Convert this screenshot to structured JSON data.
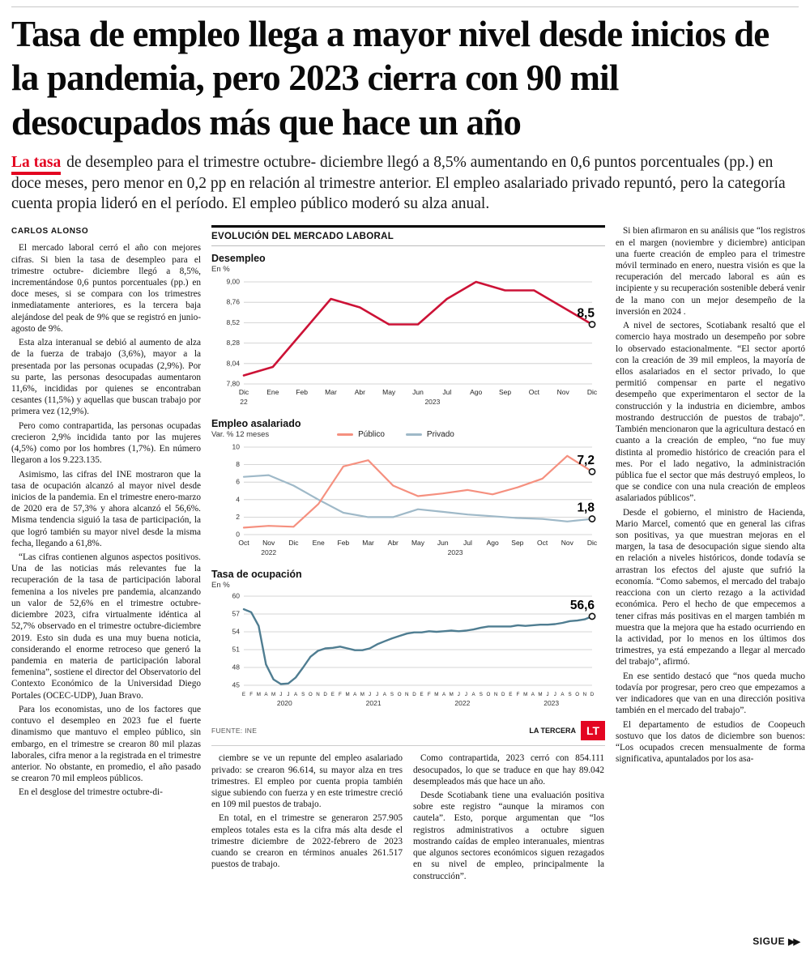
{
  "header": {
    "headline": "Tasa de empleo llega a mayor nivel desde inicios de la pandemia, pero 2023 cierra con 90 mil desocupados más que hace un año"
  },
  "lede": {
    "highlight": "La tasa",
    "text": "de desempleo para el trimestre octubre- diciembre llegó a 8,5% aumentando en 0,6 puntos porcentuales (pp.) en doce meses, pero menor en 0,2 pp en relación al trimestre anterior. El empleo asalariado privado repuntó, pero la categoría cuenta propia lideró en el período. El empleo público moderó su alza anual."
  },
  "article": {
    "byline": "CARLOS ALONSO",
    "columns": {
      "left": [
        "El mercado laboral cerró el año con mejores cifras. Si bien la tasa de desempleo para el trimestre octubre- diciembre llegó a 8,5%, incrementándose 0,6 puntos porcentuales (pp.) en doce meses, si se compara con los trimestres inmediatamente anteriores, es la tercera baja alejándose del peak de 9% que se registró en junio-agosto de 9%.",
        "Esta alza interanual se debió al aumento de alza de la fuerza de trabajo (3,6%), mayor a la presentada por las personas ocupadas (2,9%). Por su parte, las personas desocupadas aumentaron 11,6%, incididas por quienes se encontraban cesantes (11,5%) y aquellas que buscan trabajo por primera vez (12,9%).",
        "Pero como contrapartida, las personas ocupadas crecieron 2,9% incidida tanto por las mujeres (4,5%) como por los hombres (1,7%). En número llegaron a los 9.223.135.",
        "Asimismo, las cifras del INE mostraron que la tasa de ocupación alcanzó al mayor nivel desde inicios de la pandemia. En el trimestre enero-marzo de 2020 era de 57,3% y ahora alcanzó el 56,6%. Misma tendencia siguió la tasa de participación, la que logró también su mayor nivel desde la misma fecha, llegando a 61,8%.",
        "“Las cifras contienen algunos aspectos positivos. Una de las noticias más relevantes fue la recuperación de la tasa de participación laboral femenina a los niveles pre pandemia, alcanzando un valor de 52,6% en el trimestre octubre-diciembre 2023, cifra virtualmente idéntica al 52,7% observado en el trimestre octubre-diciembre 2019. Esto sin duda es una muy buena noticia, considerando el enorme retroceso que generó la pandemia en materia de participación laboral femenina”, sostiene el director del Observatorio del Contexto Económico de la Universidad Diego Portales (OCEC-UDP), Juan Bravo.",
        "Para los economistas, uno de los factores que contuvo el desempleo en 2023 fue el fuerte dinamismo que mantuvo el empleo público, sin embargo, en el trimestre se crearon 80 mil plazas laborales, cifra menor a la registrada en el trimestre anterior. No obstante, en promedio, el año pasado se crearon 70 mil empleos públicos.",
        "En el desglose del trimestre octubre-di-"
      ],
      "mid_left": [
        "ciembre se ve un repunte del empleo asalariado privado: se crearon 96.614, su mayor alza en tres trimestres. El empleo por cuenta propia también sigue subiendo con fuerza y en este trimestre creció en 109 mil puestos de trabajo.",
        "En total, en el trimestre se generaron 257.905 empleos totales esta es la cifra más alta desde el trimestre diciembre de 2022-febrero de 2023 cuando se crearon en términos anuales 261.517 puestos de trabajo."
      ],
      "mid_right": [
        "Como contrapartida, 2023 cerró con 854.111 desocupados, lo que se traduce en que hay 89.042 desempleados más que hace un año.",
        "Desde Scotiabank tiene una evaluación positiva sobre este registro “aunque la miramos con cautela”. Esto, porque argumentan que “los registros administrativos a octubre siguen mostrando caídas de empleo interanuales, mientras que algunos sectores económicos siguen rezagados en su nivel de empleo, principalmente la construcción”."
      ],
      "right": [
        "Si bien afirmaron en su análisis que “los registros en el margen (noviembre y diciembre) anticipan una fuerte creación de empleo para el trimestre móvil terminado en enero, nuestra visión es que la recuperación del mercado laboral es aún es incipiente y su recuperación sostenible deberá venir de la mano con un mejor desempeño de la inversión en 2024 .",
        "A nivel de sectores, Scotiabank resaltó que el comercio haya mostrado un desempeño por sobre lo observado estacionalmente. “El sector aportó con la creación de 39 mil empleos, la mayoría de ellos asalariados en el sector privado, lo que permitió compensar en parte el negativo desempeño que experimentaron el sector de la construcción y la industria en diciembre, ambos mostrando destrucción de puestos de trabajo”. También mencionaron que la agricultura destacó en cuanto a la creación de empleo, “no fue muy distinta al promedio histórico de creación para el mes. Por el lado negativo, la administración pública fue el sector que más destruyó empleos, lo que se condice con una nula creación de empleos asalariados públicos”.",
        "Desde el gobierno, el ministro de Hacienda, Mario Marcel, comentó que en general las cifras son positivas, ya que muestran mejoras en el margen, la tasa de desocupación sigue siendo alta en relación a niveles históricos, donde todavía se arrastran los efectos del ajuste que sufrió la economía. “Como sabemos, el mercado del trabajo reacciona con un cierto rezago a la actividad económica. Pero el hecho de que empecemos a tener cifras más positivas en el margen también m muestra que la mejora que ha estado ocurriendo en la actividad, por lo menos en los últimos dos trimestres, ya está empezando a llegar al mercado del trabajo”, afirmó.",
        "En ese sentido destacó que “nos queda mucho todavía por progresar, pero creo que empezamos a ver indicadores que van en una dirección positiva también en el mercado del trabajo”.",
        "El departamento de estudios de Coopeuch sostuvo que los datos de diciembre son buenos: “Los ocupados crecen mensualmente de forma significativa, apuntalados por los asa-"
      ]
    }
  },
  "charts_panel": {
    "section_title": "EVOLUCIÓN DEL MERCADO LABORAL",
    "source": "FUENTE: INE",
    "credit": "LA TERCERA",
    "logo_text": "LT"
  },
  "footer_continue": {
    "label": "SIGUE",
    "arrows": "▶▶"
  },
  "colors": {
    "accent_red": "#e30521",
    "desempleo_line": "#cc1236",
    "publico_line": "#f5907f",
    "privado_line": "#9fb9c8",
    "ocupacion_line": "#4f7d91"
  },
  "chart_data": [
    {
      "type": "line",
      "title": "Desempleo",
      "unit": "En %",
      "x": [
        "Dic",
        "Ene",
        "Feb",
        "Mar",
        "Abr",
        "May",
        "Jun",
        "Jul",
        "Ago",
        "Sep",
        "Oct",
        "Nov",
        "Dic"
      ],
      "x_years": [
        {
          "label": "22",
          "at": 0
        },
        {
          "label": "2023",
          "at": 6.5
        }
      ],
      "ylim": [
        7.8,
        9.0
      ],
      "yticks": [
        7.8,
        8.04,
        8.28,
        8.52,
        8.76,
        9.0
      ],
      "ytick_labels": [
        "7,80",
        "8,04",
        "8,28",
        "8,52",
        "8,76",
        "9,00"
      ],
      "series": [
        {
          "name": "Desempleo",
          "color": "#cc1236",
          "width": 2.6,
          "end_label": "8,5",
          "values": [
            7.9,
            8.0,
            8.4,
            8.8,
            8.7,
            8.5,
            8.5,
            8.8,
            9.0,
            8.9,
            8.9,
            8.7,
            8.5
          ]
        }
      ]
    },
    {
      "type": "line",
      "title": "Empleo asalariado",
      "unit": "Var. % 12 meses",
      "legend": [
        "Público",
        "Privado"
      ],
      "x": [
        "Oct",
        "Nov",
        "Dic",
        "Ene",
        "Feb",
        "Mar",
        "Abr",
        "May",
        "Jun",
        "Jul",
        "Ago",
        "Sep",
        "Oct",
        "Nov",
        "Dic"
      ],
      "x_years": [
        {
          "label": "2022",
          "at": 1
        },
        {
          "label": "2023",
          "at": 8.5
        }
      ],
      "ylim": [
        0,
        10
      ],
      "yticks": [
        0,
        2,
        4,
        6,
        8,
        10
      ],
      "ytick_labels": [
        "0",
        "2",
        "4",
        "6",
        "8",
        "10"
      ],
      "series": [
        {
          "name": "Privado",
          "color": "#9fb9c8",
          "width": 2.2,
          "end_label": "1,8",
          "values": [
            6.6,
            6.8,
            5.6,
            4.0,
            2.5,
            2.0,
            2.0,
            2.9,
            2.6,
            2.3,
            2.1,
            1.9,
            1.8,
            1.5,
            1.8
          ]
        },
        {
          "name": "Público",
          "color": "#f5907f",
          "width": 2.2,
          "end_label": "7,2",
          "values": [
            0.8,
            1.0,
            0.9,
            3.5,
            7.8,
            8.5,
            5.6,
            4.4,
            4.7,
            5.1,
            4.6,
            5.4,
            6.4,
            9.0,
            7.2
          ]
        }
      ]
    },
    {
      "type": "line",
      "title": "Tasa de ocupación",
      "unit": "En %",
      "x": [
        "E",
        "F",
        "M",
        "A",
        "M",
        "J",
        "J",
        "A",
        "S",
        "O",
        "N",
        "D",
        "E",
        "F",
        "M",
        "A",
        "M",
        "J",
        "J",
        "A",
        "S",
        "O",
        "N",
        "D",
        "E",
        "F",
        "M",
        "A",
        "M",
        "J",
        "J",
        "A",
        "S",
        "O",
        "N",
        "D",
        "E",
        "F",
        "M",
        "A",
        "M",
        "J",
        "J",
        "A",
        "S",
        "O",
        "N",
        "D"
      ],
      "x_years": [
        {
          "label": "2020",
          "at": 5.5
        },
        {
          "label": "2021",
          "at": 17.5
        },
        {
          "label": "2022",
          "at": 29.5
        },
        {
          "label": "2023",
          "at": 41.5
        }
      ],
      "ylim": [
        45,
        60
      ],
      "yticks": [
        45,
        48,
        51,
        54,
        57,
        60
      ],
      "ytick_labels": [
        "45",
        "48",
        "51",
        "54",
        "57",
        "60"
      ],
      "series": [
        {
          "name": "Tasa de ocupación",
          "color": "#4f7d91",
          "width": 2.4,
          "end_label": "56,6",
          "values": [
            57.8,
            57.3,
            55.0,
            48.5,
            46.0,
            45.2,
            45.3,
            46.3,
            48.0,
            49.8,
            50.8,
            51.2,
            51.3,
            51.5,
            51.2,
            50.9,
            50.9,
            51.2,
            51.9,
            52.4,
            52.9,
            53.3,
            53.7,
            53.9,
            53.9,
            54.1,
            54.0,
            54.1,
            54.2,
            54.1,
            54.2,
            54.4,
            54.7,
            54.9,
            54.9,
            54.9,
            54.9,
            55.1,
            55.0,
            55.1,
            55.2,
            55.2,
            55.3,
            55.5,
            55.8,
            55.9,
            56.1,
            56.6
          ]
        }
      ]
    }
  ]
}
